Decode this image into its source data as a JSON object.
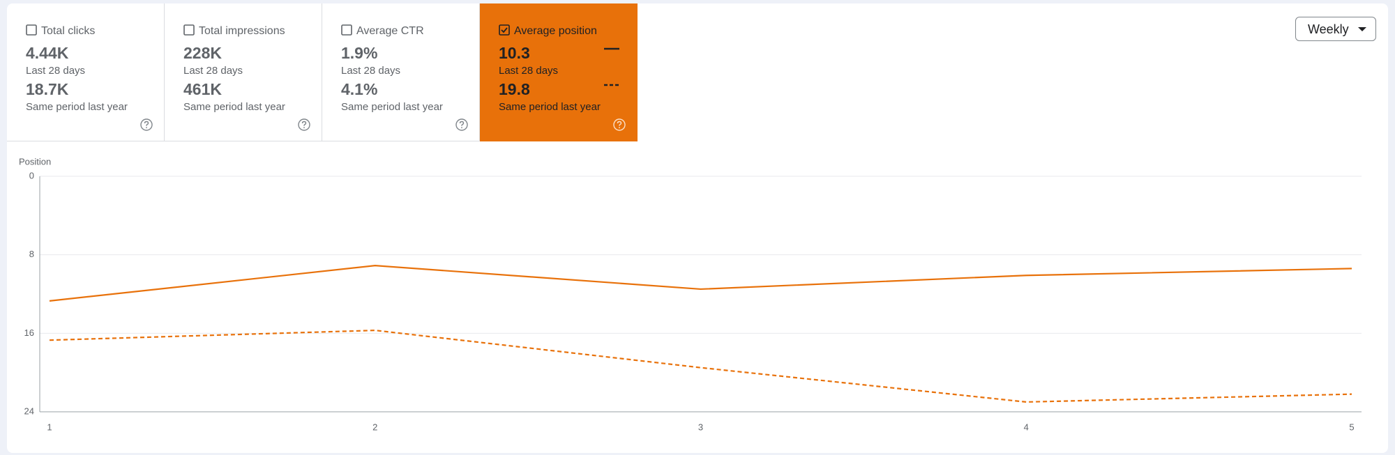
{
  "metrics": [
    {
      "label": "Total clicks",
      "checked": false,
      "value": "4.44K",
      "period": "Last 28 days",
      "previous_value": "18.7K",
      "previous_period": "Same period last year"
    },
    {
      "label": "Total impressions",
      "checked": false,
      "value": "228K",
      "period": "Last 28 days",
      "previous_value": "461K",
      "previous_period": "Same period last year"
    },
    {
      "label": "Average CTR",
      "checked": false,
      "value": "1.9%",
      "period": "Last 28 days",
      "previous_value": "4.1%",
      "previous_period": "Same period last year"
    },
    {
      "label": "Average position",
      "checked": true,
      "value": "10.3",
      "period": "Last 28 days",
      "previous_value": "19.8",
      "previous_period": "Same period last year"
    }
  ],
  "controls": {
    "granularity": "Weekly"
  },
  "chart_data": {
    "type": "line",
    "y_label": "Position",
    "x": [
      1,
      2,
      3,
      4,
      5
    ],
    "xlim": [
      0.97,
      5.03
    ],
    "xticks": [
      1,
      2,
      3,
      4,
      5
    ],
    "ylim": [
      0,
      24
    ],
    "yticks": [
      0,
      8,
      16,
      24
    ],
    "y_inverted": true,
    "grid": true,
    "series": [
      {
        "color": "#e8710a",
        "dash": "solid",
        "values": [
          12.7,
          9.1,
          11.5,
          10.1,
          9.4
        ]
      },
      {
        "color": "#e8710a",
        "dash": "dashed",
        "values": [
          16.7,
          15.7,
          19.5,
          23.0,
          22.2
        ]
      }
    ]
  }
}
